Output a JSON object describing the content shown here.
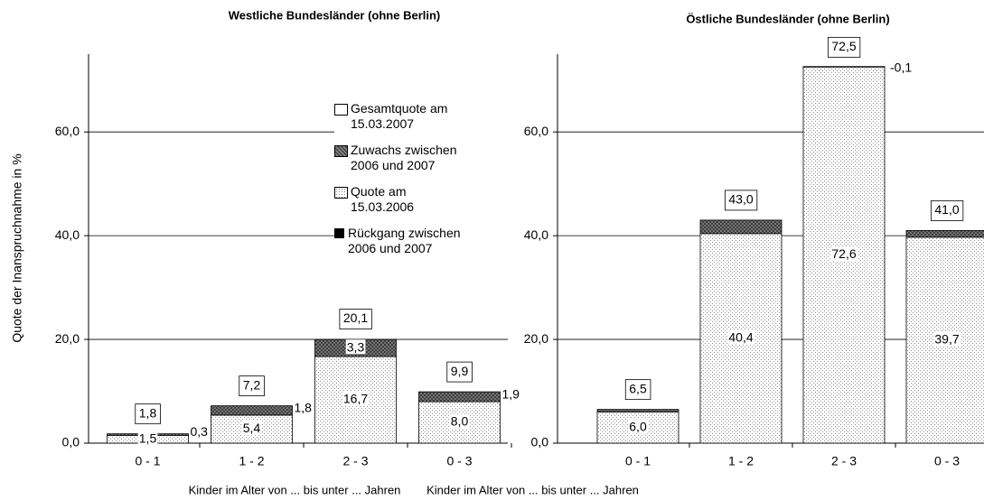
{
  "chart_data": [
    {
      "type": "bar",
      "stacked": true,
      "title": "Westliche Bundesländer (ohne Berlin)",
      "ylabel": "Quote der Inanspruchnahme in %",
      "xlabel": "Kinder im Alter von ... bis unter ... Jahren",
      "categories": [
        "0 - 1",
        "1 - 2",
        "2 - 3",
        "0 - 3"
      ],
      "ylim": [
        0,
        75
      ],
      "yticks": [
        {
          "value": 0,
          "label": "0,0"
        },
        {
          "value": 20,
          "label": "20,0"
        },
        {
          "value": 40,
          "label": "40,0"
        },
        {
          "value": 60,
          "label": "60,0"
        }
      ],
      "grid": true,
      "legend": "upper right",
      "series": [
        {
          "name": "Gesamtquote am\n15.03.2007",
          "color": "#ffffff",
          "kind": "total",
          "values": [
            1.8,
            7.2,
            20.1,
            9.9
          ],
          "value_labels": [
            "1,8",
            "7,2",
            "20,1",
            "9,9"
          ]
        },
        {
          "name": "Zuwachs zwischen\n2006 und 2007",
          "color": "#808080",
          "pattern": "hatch",
          "values": [
            0.3,
            1.8,
            3.3,
            1.9
          ],
          "value_labels": [
            "0,3",
            "1,8",
            "3,3",
            "1,9"
          ]
        },
        {
          "name": "Quote am\n15.03.2006",
          "color": "#8c8c8c",
          "pattern": "dots",
          "values": [
            1.5,
            5.4,
            16.7,
            8.0
          ],
          "value_labels": [
            "1,5",
            "5,4",
            "16,7",
            "8,0"
          ]
        },
        {
          "name": "Rückgang zwischen\n2006 und 2007",
          "color": "#000000",
          "values": [
            null,
            null,
            null,
            null
          ]
        }
      ]
    },
    {
      "type": "bar",
      "stacked": true,
      "title": "Östliche Bundesländer (ohne Berlin)",
      "xlabel": "Kinder im Alter von ... bis unter ... Jahren",
      "categories": [
        "0 - 1",
        "1 - 2",
        "2 - 3",
        "0 - 3"
      ],
      "ylim": [
        0,
        75
      ],
      "yticks": [
        {
          "value": 0,
          "label": "0,0"
        },
        {
          "value": 20,
          "label": "20,0"
        },
        {
          "value": 40,
          "label": "40,0"
        },
        {
          "value": 60,
          "label": "60,0"
        }
      ],
      "grid": true,
      "series": [
        {
          "color": "#ffffff",
          "kind": "total",
          "values": [
            6.5,
            43.0,
            72.5,
            41.0
          ],
          "value_labels": [
            "6,5",
            "43,0",
            "72,5",
            "41,0"
          ]
        },
        {
          "color": "#808080",
          "pattern": "hatch",
          "values": [
            0.5,
            2.6,
            null,
            1.3
          ]
        },
        {
          "color": "#8c8c8c",
          "pattern": "dots",
          "values": [
            6.0,
            40.4,
            72.6,
            39.7
          ],
          "value_labels": [
            "6,0",
            "40,4",
            "72,6",
            "39,7"
          ]
        },
        {
          "color": "#000000",
          "values": [
            null,
            null,
            -0.1,
            null
          ],
          "value_labels": [
            null,
            null,
            "-0,1",
            null
          ]
        }
      ]
    }
  ]
}
